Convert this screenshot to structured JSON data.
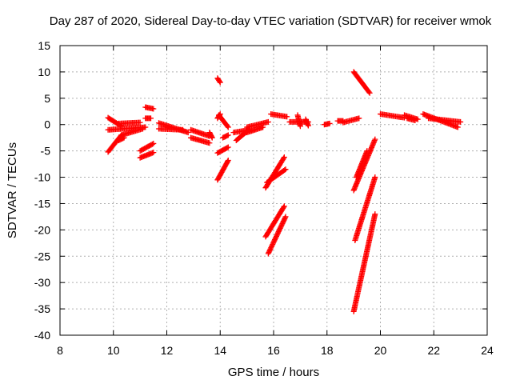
{
  "chart_data": {
    "type": "scatter",
    "title": "Day 287 of 2020, Sidereal Day-to-day VTEC variation (SDTVAR) for receiver wmok",
    "xlabel": "GPS time / hours",
    "ylabel": "SDTVAR / TECUs",
    "xlim": [
      8,
      24
    ],
    "ylim": [
      -40,
      15
    ],
    "xticks": [
      "8",
      "10",
      "12",
      "14",
      "16",
      "18",
      "20",
      "22",
      "24"
    ],
    "yticks": [
      "15",
      "10",
      "5",
      "0",
      "-5",
      "-10",
      "-15",
      "-20",
      "-25",
      "-30",
      "-35",
      "-40"
    ],
    "grid": true,
    "marker": "plus",
    "color": "#ff0000",
    "segments": [
      {
        "x": [
          9.8,
          10.3
        ],
        "y": [
          -5.2,
          -2.0
        ]
      },
      {
        "x": [
          9.8,
          10.3
        ],
        "y": [
          1.3,
          -0.3
        ]
      },
      {
        "x": [
          9.8,
          11.2
        ],
        "y": [
          -1.0,
          -0.5
        ]
      },
      {
        "x": [
          10.2,
          10.4
        ],
        "y": [
          -3.0,
          -2.5
        ]
      },
      {
        "x": [
          10.2,
          11.0
        ],
        "y": [
          0.2,
          0.4
        ]
      },
      {
        "x": [
          10.3,
          11.1
        ],
        "y": [
          -2.0,
          -0.8
        ]
      },
      {
        "x": [
          11.0,
          11.5
        ],
        "y": [
          -5.0,
          -3.6
        ]
      },
      {
        "x": [
          11.0,
          11.5
        ],
        "y": [
          -6.3,
          -5.3
        ]
      },
      {
        "x": [
          11.2,
          11.4
        ],
        "y": [
          1.2,
          1.2
        ]
      },
      {
        "x": [
          11.2,
          11.5
        ],
        "y": [
          3.3,
          3.0
        ]
      },
      {
        "x": [
          11.7,
          12.8
        ],
        "y": [
          0.3,
          -1.5
        ]
      },
      {
        "x": [
          11.7,
          12.6
        ],
        "y": [
          -0.8,
          -1.0
        ]
      },
      {
        "x": [
          12.9,
          13.6
        ],
        "y": [
          -1.0,
          -2.2
        ]
      },
      {
        "x": [
          12.9,
          13.6
        ],
        "y": [
          -2.5,
          -3.5
        ]
      },
      {
        "x": [
          13.6,
          13.7
        ],
        "y": [
          -1.5,
          -2.5
        ]
      },
      {
        "x": [
          13.9,
          14.0
        ],
        "y": [
          8.8,
          8.0
        ]
      },
      {
        "x": [
          13.9,
          14.0
        ],
        "y": [
          1.2,
          2.0
        ]
      },
      {
        "x": [
          13.9,
          14.3
        ],
        "y": [
          -5.4,
          -4.3
        ]
      },
      {
        "x": [
          13.9,
          14.3
        ],
        "y": [
          -10.5,
          -6.8
        ]
      },
      {
        "x": [
          13.95,
          14.3
        ],
        "y": [
          1.8,
          -0.5
        ]
      },
      {
        "x": [
          14.1,
          14.3
        ],
        "y": [
          -2.5,
          -2.0
        ]
      },
      {
        "x": [
          14.5,
          15.1
        ],
        "y": [
          -1.5,
          -1.0
        ]
      },
      {
        "x": [
          14.6,
          15.0
        ],
        "y": [
          -3.0,
          -1.3
        ]
      },
      {
        "x": [
          15.0,
          15.8
        ],
        "y": [
          -0.5,
          0.5
        ]
      },
      {
        "x": [
          15.0,
          15.6
        ],
        "y": [
          -1.5,
          -0.5
        ]
      },
      {
        "x": [
          15.7,
          16.4
        ],
        "y": [
          -12.0,
          -6.2
        ]
      },
      {
        "x": [
          15.7,
          16.4
        ],
        "y": [
          -21.3,
          -15.5
        ]
      },
      {
        "x": [
          15.75,
          16.45
        ],
        "y": [
          -11.0,
          -8.5
        ]
      },
      {
        "x": [
          15.8,
          16.45
        ],
        "y": [
          -24.5,
          -17.5
        ]
      },
      {
        "x": [
          15.9,
          16.5
        ],
        "y": [
          2.0,
          1.5
        ]
      },
      {
        "x": [
          16.6,
          17.3
        ],
        "y": [
          0.5,
          0.5
        ]
      },
      {
        "x": [
          16.9,
          17.0
        ],
        "y": [
          1.8,
          -0.3
        ]
      },
      {
        "x": [
          17.2,
          17.3
        ],
        "y": [
          1.0,
          -0.2
        ]
      },
      {
        "x": [
          17.9,
          18.1
        ],
        "y": [
          0.0,
          0.2
        ]
      },
      {
        "x": [
          18.4,
          18.6
        ],
        "y": [
          0.7,
          0.7
        ]
      },
      {
        "x": [
          18.6,
          19.2
        ],
        "y": [
          0.4,
          1.2
        ]
      },
      {
        "x": [
          19.0,
          19.6
        ],
        "y": [
          10.0,
          6.0
        ]
      },
      {
        "x": [
          19.0,
          19.8
        ],
        "y": [
          -12.5,
          -2.8
        ]
      },
      {
        "x": [
          19.05,
          19.8
        ],
        "y": [
          -22.0,
          -10.0
        ]
      },
      {
        "x": [
          19.0,
          19.8
        ],
        "y": [
          -35.5,
          -17.0
        ]
      },
      {
        "x": [
          19.1,
          19.5
        ],
        "y": [
          -10.0,
          -5.0
        ]
      },
      {
        "x": [
          20.0,
          20.9
        ],
        "y": [
          2.0,
          1.3
        ]
      },
      {
        "x": [
          20.9,
          21.4
        ],
        "y": [
          1.8,
          1.0
        ]
      },
      {
        "x": [
          21.0,
          21.3
        ],
        "y": [
          1.2,
          0.8
        ]
      },
      {
        "x": [
          21.6,
          22.9
        ],
        "y": [
          2.0,
          -0.5
        ]
      },
      {
        "x": [
          21.8,
          23.0
        ],
        "y": [
          1.2,
          0.5
        ]
      }
    ]
  }
}
